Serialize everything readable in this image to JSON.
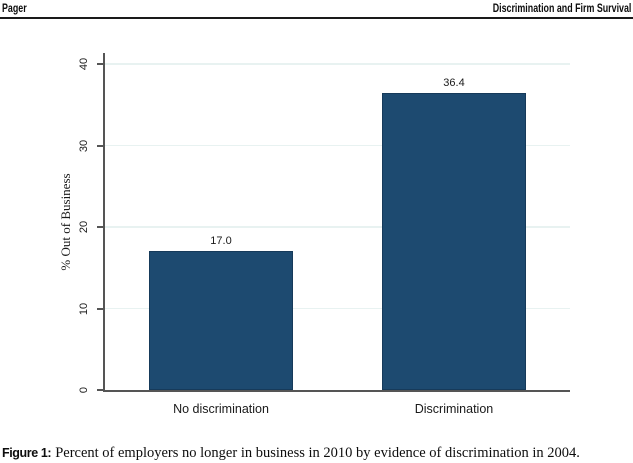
{
  "header": {
    "left": "Pager",
    "right": "Discrimination and Firm Survival"
  },
  "chart_data": {
    "type": "bar",
    "categories": [
      "No discrimination",
      "Discrimination"
    ],
    "values": [
      17.0,
      36.4
    ],
    "value_labels": [
      "17.0",
      "36.4"
    ],
    "title": "",
    "xlabel": "",
    "ylabel": "% Out of Business",
    "ylim": [
      0,
      40
    ],
    "yticks": [
      0,
      10,
      20,
      30,
      40
    ],
    "grid": true,
    "legend": "none",
    "bar_color": "#1d4a70",
    "bar_border_color": "#163a5a",
    "gridline_color": "#e8f2f1",
    "axis_color": "#555555"
  },
  "caption": {
    "label": "Figure 1:",
    "text": "Percent of employers no longer in business in 2010 by evidence of discrimination in 2004."
  }
}
